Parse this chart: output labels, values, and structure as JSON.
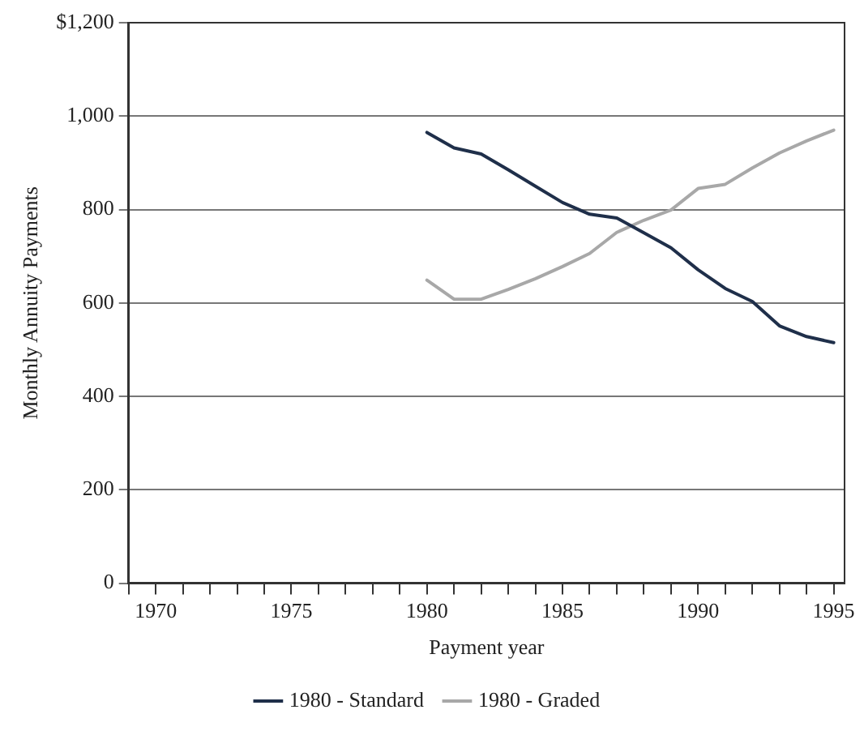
{
  "chart_data": {
    "type": "line",
    "xlabel": "Payment year",
    "ylabel": "Monthly Annuity Payments",
    "x": [
      1980,
      1981,
      1982,
      1983,
      1984,
      1985,
      1986,
      1987,
      1988,
      1989,
      1990,
      1991,
      1992,
      1993,
      1994,
      1995
    ],
    "series": [
      {
        "name": "1980 - Standard",
        "color": "#1f2f4a",
        "values": [
          965,
          932,
          919,
          885,
          850,
          815,
          790,
          782,
          750,
          718,
          671,
          631,
          603,
          551,
          528,
          515
        ]
      },
      {
        "name": "1980 - Graded",
        "color": "#a8a8a8",
        "values": [
          649,
          608,
          608,
          629,
          652,
          678,
          706,
          751,
          777,
          799,
          845,
          854,
          889,
          921,
          947,
          970
        ]
      }
    ],
    "xlim": [
      1969,
      1995.4
    ],
    "xticks": [
      {
        "value": 1969,
        "label": null
      },
      1970,
      {
        "value": 1971,
        "label": null
      },
      {
        "value": 1972,
        "label": null
      },
      {
        "value": 1973,
        "label": null
      },
      {
        "value": 1974,
        "label": null
      },
      1975,
      {
        "value": 1976,
        "label": null
      },
      {
        "value": 1977,
        "label": null
      },
      {
        "value": 1978,
        "label": null
      },
      {
        "value": 1979,
        "label": null
      },
      1980,
      {
        "value": 1981,
        "label": null
      },
      {
        "value": 1982,
        "label": null
      },
      {
        "value": 1983,
        "label": null
      },
      {
        "value": 1984,
        "label": null
      },
      1985,
      {
        "value": 1986,
        "label": null
      },
      {
        "value": 1987,
        "label": null
      },
      {
        "value": 1988,
        "label": null
      },
      {
        "value": 1989,
        "label": null
      },
      1990,
      {
        "value": 1991,
        "label": null
      },
      {
        "value": 1992,
        "label": null
      },
      {
        "value": 1993,
        "label": null
      },
      {
        "value": 1994,
        "label": null
      },
      1995
    ],
    "ylim": [
      0,
      1200
    ],
    "yticks": [
      0,
      200,
      400,
      600,
      800,
      {
        "value": 1000,
        "label": "1,000"
      },
      {
        "value": 1200,
        "label": "$1,200"
      }
    ],
    "grid": "y",
    "legend": "bottom",
    "marker": "none",
    "line_style": "solid"
  }
}
